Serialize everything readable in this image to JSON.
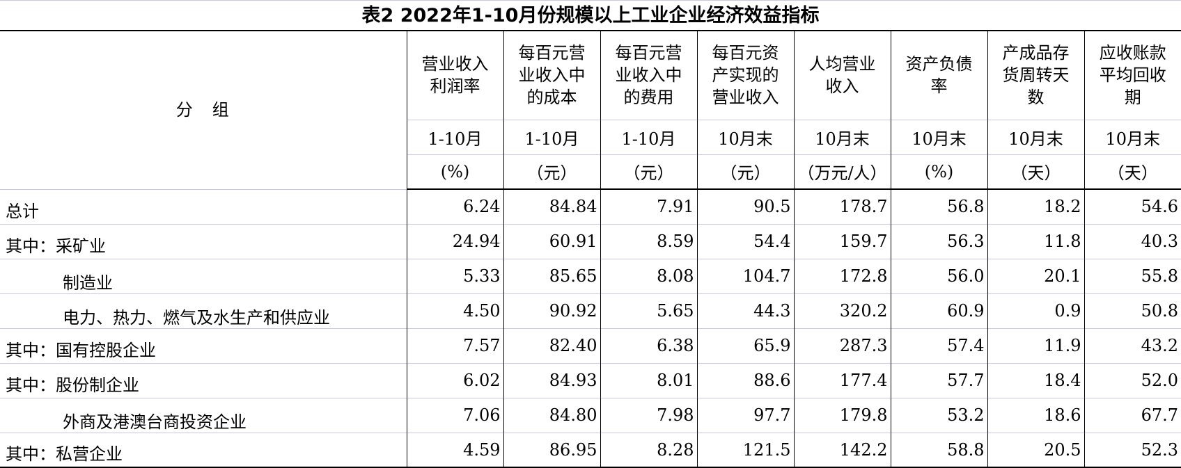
{
  "title": "表2  2022年1-10月份规模以上工业企业经济效益指标",
  "table": {
    "group_header": "分　组",
    "columns": [
      {
        "name": "营业收入利润率",
        "period": "1-10月",
        "unit": "(%)"
      },
      {
        "name": "每百元营业收入中的成本",
        "period": "1-10月",
        "unit": "（元）"
      },
      {
        "name": "每百元营业收入中的费用",
        "period": "1-10月",
        "unit": "（元）"
      },
      {
        "name": "每百元资产实现的营业收入",
        "period": "10月末",
        "unit": "（元）"
      },
      {
        "name": "人均营业收入",
        "period": "10月末",
        "unit": "（万元/人）"
      },
      {
        "name": "资产负债率",
        "period": "10月末",
        "unit": "(%)"
      },
      {
        "name": "产成品存货周转天数",
        "period": "10月末",
        "unit": "（天）"
      },
      {
        "name": "应收账款平均回收期",
        "period": "10月末",
        "unit": "（天）"
      }
    ],
    "rows": [
      {
        "label": "总计",
        "values": [
          "6.24",
          "84.84",
          "7.91",
          "90.5",
          "178.7",
          "56.8",
          "18.2",
          "54.6"
        ]
      },
      {
        "label": "其中：采矿业",
        "values": [
          "24.94",
          "60.91",
          "8.59",
          "54.4",
          "159.7",
          "56.3",
          "11.8",
          "40.3"
        ]
      },
      {
        "label": "制造业",
        "values": [
          "5.33",
          "85.65",
          "8.08",
          "104.7",
          "172.8",
          "56.0",
          "20.1",
          "55.8"
        ]
      },
      {
        "label": "电力、热力、燃气及水生产和供应业",
        "values": [
          "4.50",
          "90.92",
          "5.65",
          "44.3",
          "320.2",
          "60.9",
          "0.9",
          "50.8"
        ]
      },
      {
        "label": "其中：国有控股企业",
        "values": [
          "7.57",
          "82.40",
          "6.38",
          "65.9",
          "287.3",
          "57.4",
          "11.9",
          "43.2"
        ]
      },
      {
        "label": "其中：股份制企业",
        "values": [
          "6.02",
          "84.93",
          "8.01",
          "88.6",
          "177.4",
          "57.7",
          "18.4",
          "52.0"
        ]
      },
      {
        "label": "外商及港澳台商投资企业",
        "values": [
          "7.06",
          "84.80",
          "7.98",
          "97.7",
          "179.8",
          "53.2",
          "18.6",
          "67.7"
        ]
      },
      {
        "label": "其中：私营企业",
        "values": [
          "4.59",
          "86.95",
          "8.28",
          "121.5",
          "142.2",
          "58.8",
          "20.5",
          "52.3"
        ]
      }
    ]
  }
}
